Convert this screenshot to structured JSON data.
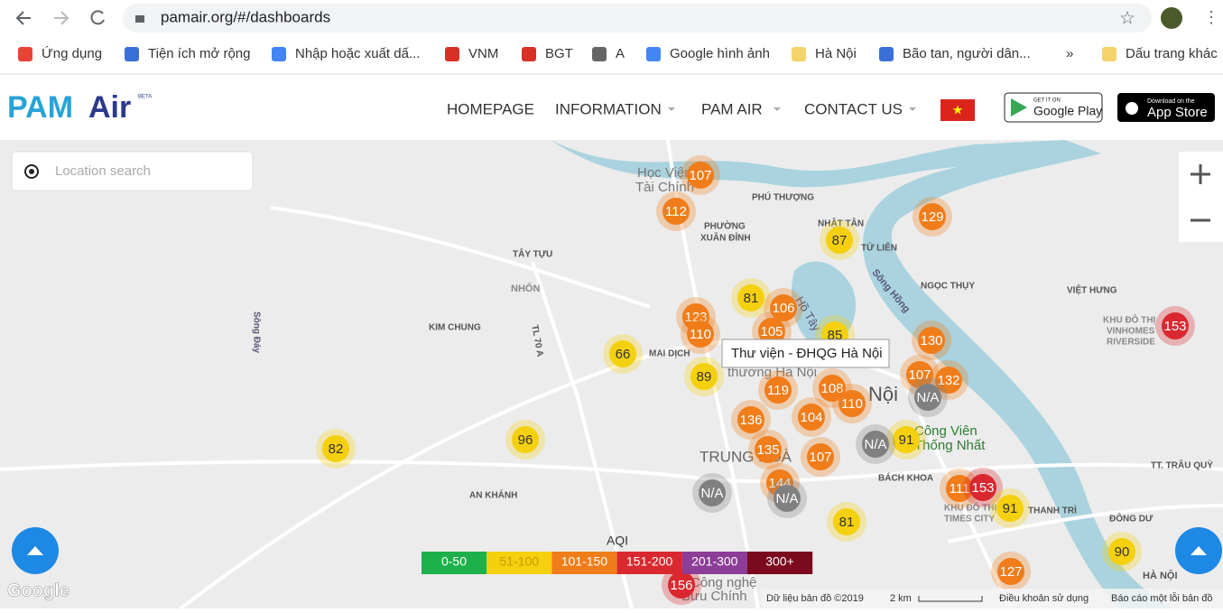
{
  "browser": {
    "url": "pamair.org/#/dashboards",
    "bookmarks": [
      "Ứng dụng",
      "Tiện ích mở rộng",
      "Nhập hoặc xuất dấ...",
      "VNM",
      "BGT",
      "A",
      "Google hình ảnh",
      "Hà Nội",
      "Bão tan, người dân...",
      "»",
      "Dấu trang khác"
    ]
  },
  "header": {
    "logo_pam": "PAM",
    "logo_air": "Air",
    "beta": "BETA",
    "nav": [
      "HOMEPAGE",
      "INFORMATION",
      "PAM AIR",
      "CONTACT US"
    ],
    "google_play_small": "GET IT ON",
    "google_play": "Google Play",
    "app_store_small": "Download on the",
    "app_store": "App Store"
  },
  "map": {
    "search_placeholder": "Location search",
    "tooltip": "Thư viện - ĐHQG Hà Nội",
    "labels": [
      "Học Viện",
      "Tài Chính",
      "PHÚ THƯỢNG",
      "NHẬT TÂN",
      "PHƯỜNG",
      "XUÂN ĐỈNH",
      "TỨ LIÊN",
      "TÂY TỰU",
      "Sông Hồng",
      "NGỌC THỤY",
      "VIỆT HƯNG",
      "NHỔN",
      "KIM CHUNG",
      "Sông Đáy",
      "TL 70 A",
      "MAI DỊCH",
      "Hồ Tây",
      "KHU ĐÔ THỊ",
      "VINHOMES",
      "RIVERSIDE",
      "Nội",
      "Công Viên",
      "Thống Nhất",
      "TRUNG HOÀ",
      "BÁCH KHOA",
      "AN KHÁNH",
      "TT. TRÂU QUỲ",
      "THANH TRÌ",
      "ĐÔNG DƯ",
      "HÀ NỘI",
      "KHU ĐÔ THỊ",
      "TIMES CITY",
      "Công nghệ",
      "Bưu Chính",
      "thương Hà Nội"
    ],
    "markers": [
      {
        "label": 107,
        "color": "#f07d1a"
      },
      {
        "label": 112,
        "color": "#f07d1a"
      },
      {
        "label": 129,
        "color": "#f07d1a"
      },
      {
        "label": 87,
        "color": "#f5d00e"
      },
      {
        "label": 81,
        "color": "#f5d00e"
      },
      {
        "label": 106,
        "color": "#f07d1a"
      },
      {
        "label": 123,
        "color": "#f07d1a"
      },
      {
        "label": 110,
        "color": "#f07d1a"
      },
      {
        "label": 105,
        "color": "#f07d1a"
      },
      {
        "label": 85,
        "color": "#f5d00e"
      },
      {
        "label": 66,
        "color": "#f5d00e"
      },
      {
        "label": 89,
        "color": "#f5d00e"
      },
      {
        "label": 130,
        "color": "#f07d1a"
      },
      {
        "label": 107,
        "color": "#f07d1a"
      },
      {
        "label": 132,
        "color": "#f07d1a"
      },
      {
        "label": 119,
        "color": "#f07d1a"
      },
      {
        "label": 108,
        "color": "#f07d1a"
      },
      {
        "label": 110,
        "color": "#f07d1a"
      },
      {
        "label": "N/A",
        "color": "#808080"
      },
      {
        "label": 136,
        "color": "#f07d1a"
      },
      {
        "label": 104,
        "color": "#f07d1a"
      },
      {
        "label": 82,
        "color": "#f5d00e"
      },
      {
        "label": 96,
        "color": "#f5d00e"
      },
      {
        "label": 91,
        "color": "#f5d00e"
      },
      {
        "label": "N/A",
        "color": "#808080"
      },
      {
        "label": 135,
        "color": "#f07d1a"
      },
      {
        "label": 107,
        "color": "#f07d1a"
      },
      {
        "label": "N/A",
        "color": "#808080"
      },
      {
        "label": 144,
        "color": "#f07d1a"
      },
      {
        "label": "N/A",
        "color": "#808080"
      },
      {
        "label": 111,
        "color": "#f07d1a"
      },
      {
        "label": 153,
        "color": "#d9282f"
      },
      {
        "label": 91,
        "color": "#f5d00e"
      },
      {
        "label": 81,
        "color": "#f5d00e"
      },
      {
        "label": 153,
        "color": "#d9282f"
      },
      {
        "label": 90,
        "color": "#f5d00e"
      },
      {
        "label": 127,
        "color": "#f07d1a"
      },
      {
        "label": 156,
        "color": "#d9282f"
      }
    ],
    "legend": {
      "title": "AQI",
      "items": [
        {
          "label": "0-50",
          "color": "#1eb14b"
        },
        {
          "label": "51-100",
          "color": "#f5d00e"
        },
        {
          "label": "101-150",
          "color": "#f07d1a"
        },
        {
          "label": "151-200",
          "color": "#d9282f"
        },
        {
          "label": "201-300",
          "color": "#8c3d97"
        },
        {
          "label": "300+",
          "color": "#7b0a1e"
        }
      ]
    },
    "google": "Google",
    "footer": [
      "Dữ liệu bản đồ ©2019",
      "2 km",
      "Điều khoản sử dụng",
      "Báo cáo một lỗi bản đồ"
    ]
  }
}
